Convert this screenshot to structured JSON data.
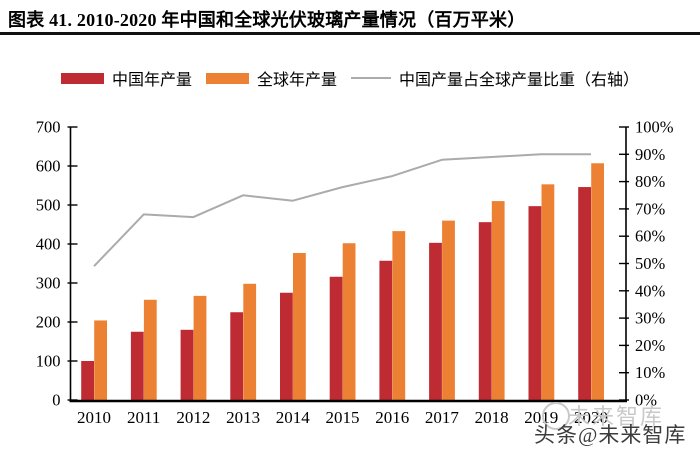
{
  "header": {
    "title": "图表 41. 2010-2020 年中国和全球光伏玻璃产量情况（百万平米）"
  },
  "legend": {
    "items": [
      {
        "label": "中国年产量",
        "color": "#be2b32",
        "type": "swatch"
      },
      {
        "label": "全球年产量",
        "color": "#ed8133",
        "type": "swatch"
      },
      {
        "label": "中国产量占全球产量比重（右轴）",
        "color": "#ababab",
        "type": "line"
      }
    ]
  },
  "watermark": {
    "ghost": "未来智库",
    "text": "头条@未来智库"
  },
  "chart_data": {
    "type": "bar",
    "title": "2010-2020 年中国和全球光伏玻璃产量情况（百万平米）",
    "categories": [
      "2010",
      "2011",
      "2012",
      "2013",
      "2014",
      "2015",
      "2016",
      "2017",
      "2018",
      "2019",
      "2020"
    ],
    "series": [
      {
        "name": "中国年产量",
        "type": "bar",
        "axis": "left",
        "color": "#be2b32",
        "values": [
          100,
          175,
          180,
          225,
          275,
          316,
          357,
          403,
          456,
          497,
          546
        ]
      },
      {
        "name": "全球年产量",
        "type": "bar",
        "axis": "left",
        "color": "#ed8133",
        "values": [
          204,
          257,
          267,
          298,
          377,
          402,
          433,
          460,
          510,
          553,
          607
        ]
      },
      {
        "name": "中国产量占全球产量比重（右轴）",
        "type": "line",
        "axis": "right",
        "color": "#ababab",
        "values": [
          49,
          68,
          67,
          75,
          73,
          78,
          82,
          88,
          89,
          90,
          90
        ]
      }
    ],
    "left_axis": {
      "min": 0,
      "max": 700,
      "step": 100,
      "suffix": ""
    },
    "right_axis": {
      "min": 0,
      "max": 100,
      "step": 10,
      "suffix": "%"
    },
    "grid": false,
    "legend_position": "top",
    "axis_color": "#000000"
  }
}
